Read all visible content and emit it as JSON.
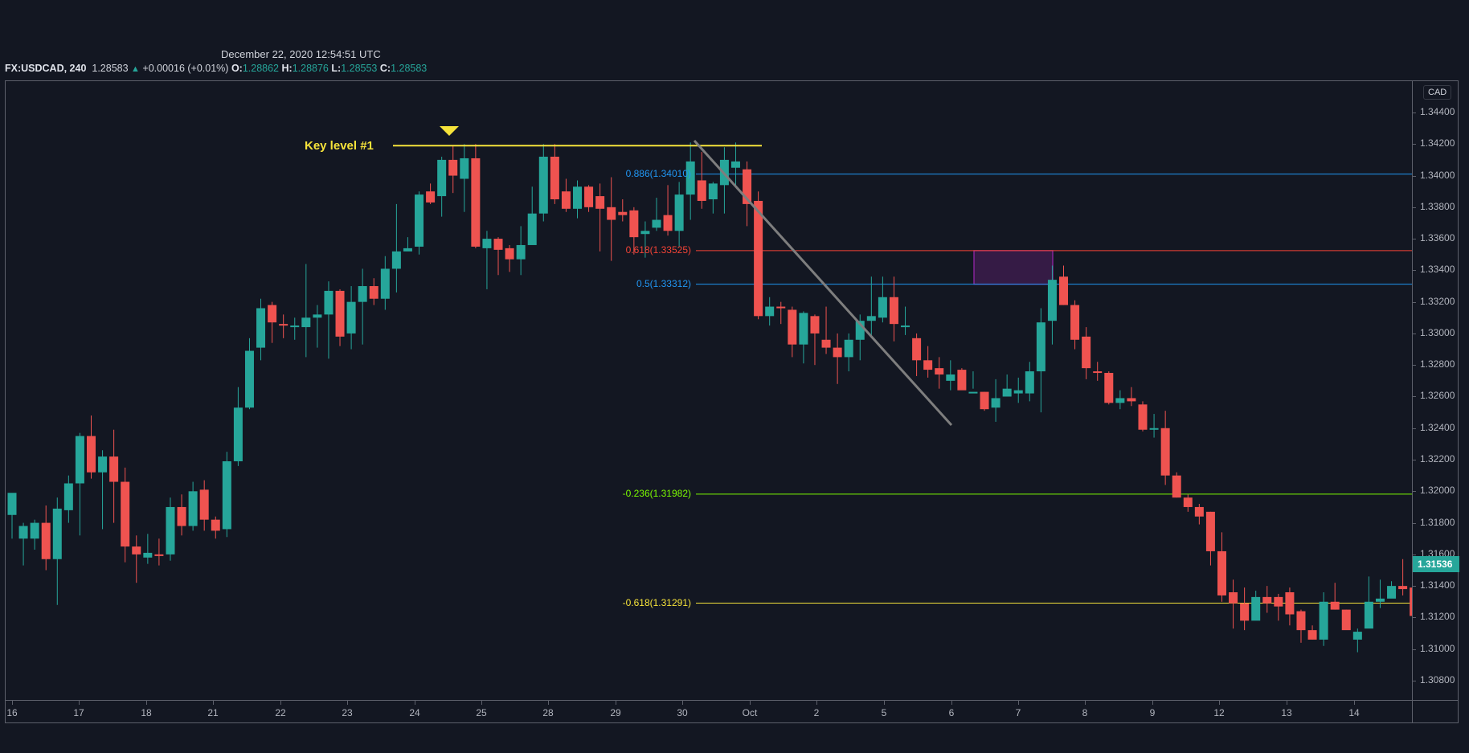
{
  "header": {
    "timestamp": "December 22, 2020 12:54:51 UTC",
    "symbol": "FX:USDCAD, 240",
    "last": "1.28583",
    "change_icon": "triangle-up-icon",
    "change": "+0.00016 (+0.01%)",
    "open_label": "O:",
    "open": "1.28862",
    "high_label": "H:",
    "high": "1.28876",
    "low_label": "L:",
    "low": "1.28553",
    "close_label": "C:",
    "close": "1.28583"
  },
  "price_scale": {
    "currency": "CAD",
    "ticks": [
      "1.34400",
      "1.34200",
      "1.34000",
      "1.33800",
      "1.33600",
      "1.33400",
      "1.33200",
      "1.33000",
      "1.32800",
      "1.32600",
      "1.32400",
      "1.32200",
      "1.32000",
      "1.31800",
      "1.31600",
      "1.31400",
      "1.31200",
      "1.31000",
      "1.30800"
    ],
    "last_price_label": "1.31536"
  },
  "time_axis": {
    "labels": [
      "16",
      "17",
      "18",
      "21",
      "22",
      "23",
      "24",
      "25",
      "28",
      "29",
      "30",
      "Oct",
      "2",
      "5",
      "6",
      "7",
      "8",
      "9",
      "12",
      "13",
      "14"
    ]
  },
  "annotations": {
    "key_level_label": "Key level #1",
    "key_level_price": 1.3419,
    "fib_levels": [
      {
        "label": "0.886(1.34010)",
        "price": 1.3401,
        "color": "#2196f3"
      },
      {
        "label": "0.618(1.33525)",
        "price": 1.33525,
        "color": "#f44336"
      },
      {
        "label": "0.5(1.33312)",
        "price": 1.33312,
        "color": "#2196f3"
      },
      {
        "label": "-0.236(1.31982)",
        "price": 1.31982,
        "color": "#7cfc00"
      },
      {
        "label": "-0.618(1.31291)",
        "price": 1.31291,
        "color": "#f6e33a"
      }
    ],
    "zone_color": "#9c27b0",
    "marker_icon": "arrow-down-icon"
  },
  "colors": {
    "background": "#131722",
    "up": "#26a69a",
    "down": "#ef5350",
    "key_level": "#f6e33a",
    "trendline": "#7e7e7e"
  },
  "chart_data": {
    "type": "candlestick",
    "title": "FX:USDCAD, 240",
    "xlabel": "",
    "ylabel": "CAD",
    "ylim": [
      1.3072,
      1.3452
    ],
    "x_labels": [
      "16",
      "17",
      "18",
      "21",
      "22",
      "23",
      "24",
      "25",
      "28",
      "29",
      "30",
      "Oct",
      "2",
      "5",
      "6",
      "7",
      "8",
      "9",
      "12",
      "13",
      "14"
    ],
    "candles": [
      [
        1.3185,
        1.3199,
        1.3193,
        1.317
      ],
      [
        1.317,
        1.3178,
        1.318,
        1.3153
      ],
      [
        1.317,
        1.318,
        1.3182,
        1.3163
      ],
      [
        1.318,
        1.3157,
        1.3191,
        1.315
      ],
      [
        1.3157,
        1.3189,
        1.3196,
        1.3128
      ],
      [
        1.3188,
        1.3205,
        1.321,
        1.318
      ],
      [
        1.3205,
        1.3235,
        1.3237,
        1.3172
      ],
      [
        1.3235,
        1.3212,
        1.3248,
        1.3208
      ],
      [
        1.3212,
        1.3222,
        1.3226,
        1.3176
      ],
      [
        1.3222,
        1.3206,
        1.3239,
        1.318
      ],
      [
        1.3206,
        1.3165,
        1.3215,
        1.3155
      ],
      [
        1.3165,
        1.316,
        1.3172,
        1.3142
      ],
      [
        1.3158,
        1.3161,
        1.3173,
        1.3154
      ],
      [
        1.316,
        1.3159,
        1.317,
        1.3153
      ],
      [
        1.316,
        1.319,
        1.3196,
        1.3156
      ],
      [
        1.319,
        1.3178,
        1.3198,
        1.3172
      ],
      [
        1.3178,
        1.32,
        1.3206,
        1.3175
      ],
      [
        1.3201,
        1.3182,
        1.3207,
        1.3175
      ],
      [
        1.3182,
        1.3175,
        1.3184,
        1.317
      ],
      [
        1.3176,
        1.3219,
        1.3225,
        1.3171
      ],
      [
        1.3219,
        1.3253,
        1.3266,
        1.3216
      ],
      [
        1.3253,
        1.3289,
        1.3297,
        1.3252
      ],
      [
        1.3291,
        1.3316,
        1.3322,
        1.3283
      ],
      [
        1.3318,
        1.3307,
        1.332,
        1.3294
      ],
      [
        1.3306,
        1.3305,
        1.3312,
        1.3297
      ],
      [
        1.3305,
        1.3305,
        1.331,
        1.3296
      ],
      [
        1.3304,
        1.331,
        1.3344,
        1.3285
      ],
      [
        1.331,
        1.3312,
        1.3318,
        1.3291
      ],
      [
        1.3312,
        1.3327,
        1.3333,
        1.3284
      ],
      [
        1.3327,
        1.3298,
        1.3328,
        1.3292
      ],
      [
        1.33,
        1.332,
        1.333,
        1.329
      ],
      [
        1.332,
        1.333,
        1.3341,
        1.3293
      ],
      [
        1.333,
        1.3322,
        1.3335,
        1.3318
      ],
      [
        1.3322,
        1.3341,
        1.3349,
        1.3315
      ],
      [
        1.3341,
        1.3352,
        1.3382,
        1.3326
      ],
      [
        1.3352,
        1.3354,
        1.3361,
        1.3353
      ],
      [
        1.3355,
        1.3388,
        1.339,
        1.335
      ],
      [
        1.339,
        1.3383,
        1.3395,
        1.3382
      ],
      [
        1.3387,
        1.341,
        1.3412,
        1.3374
      ],
      [
        1.341,
        1.34,
        1.3419,
        1.3389
      ],
      [
        1.3398,
        1.3411,
        1.342,
        1.3377
      ],
      [
        1.3411,
        1.3355,
        1.342,
        1.3354
      ],
      [
        1.3354,
        1.336,
        1.3365,
        1.3328
      ],
      [
        1.336,
        1.3353,
        1.3361,
        1.3337
      ],
      [
        1.3354,
        1.3347,
        1.3356,
        1.3339
      ],
      [
        1.3347,
        1.3356,
        1.3368,
        1.3337
      ],
      [
        1.3356,
        1.3376,
        1.3393,
        1.3374
      ],
      [
        1.3376,
        1.3412,
        1.342,
        1.3371
      ],
      [
        1.3412,
        1.3385,
        1.342,
        1.3382
      ],
      [
        1.339,
        1.3379,
        1.3398,
        1.3377
      ],
      [
        1.3379,
        1.3393,
        1.3397,
        1.3373
      ],
      [
        1.3393,
        1.338,
        1.3394,
        1.3377
      ],
      [
        1.3387,
        1.3379,
        1.3395,
        1.3352
      ],
      [
        1.338,
        1.3372,
        1.3399,
        1.3346
      ],
      [
        1.3377,
        1.3375,
        1.3385,
        1.3371
      ],
      [
        1.3378,
        1.3361,
        1.338,
        1.335
      ],
      [
        1.3363,
        1.3365,
        1.3371,
        1.3348
      ],
      [
        1.3367,
        1.3372,
        1.3386,
        1.3365
      ],
      [
        1.3375,
        1.3365,
        1.3394,
        1.3362
      ],
      [
        1.3365,
        1.3388,
        1.3396,
        1.3355
      ],
      [
        1.3388,
        1.3409,
        1.3421,
        1.3372
      ],
      [
        1.3397,
        1.3384,
        1.3415,
        1.3379
      ],
      [
        1.3385,
        1.3395,
        1.3396,
        1.3376
      ],
      [
        1.3394,
        1.341,
        1.3418,
        1.3376
      ],
      [
        1.3405,
        1.3409,
        1.3421,
        1.3393
      ],
      [
        1.3404,
        1.3382,
        1.3409,
        1.3368
      ],
      [
        1.3384,
        1.3311,
        1.339,
        1.3309
      ],
      [
        1.3311,
        1.3317,
        1.3323,
        1.3305
      ],
      [
        1.3317,
        1.3316,
        1.332,
        1.3306
      ],
      [
        1.3315,
        1.3293,
        1.3317,
        1.3285
      ],
      [
        1.3293,
        1.3313,
        1.3314,
        1.3281
      ],
      [
        1.3311,
        1.33,
        1.3312,
        1.328
      ],
      [
        1.3296,
        1.3291,
        1.3317,
        1.3287
      ],
      [
        1.3291,
        1.3285,
        1.33,
        1.3268
      ],
      [
        1.3285,
        1.3296,
        1.33,
        1.3276
      ],
      [
        1.3296,
        1.3308,
        1.3312,
        1.3283
      ],
      [
        1.3308,
        1.3311,
        1.3336,
        1.3298
      ],
      [
        1.331,
        1.3323,
        1.3336,
        1.3307
      ],
      [
        1.3323,
        1.3306,
        1.3336,
        1.3295
      ],
      [
        1.3304,
        1.3305,
        1.3317,
        1.3299
      ],
      [
        1.3297,
        1.3283,
        1.33,
        1.3273
      ],
      [
        1.3283,
        1.3277,
        1.3292,
        1.3272
      ],
      [
        1.3278,
        1.3274,
        1.3285,
        1.3265
      ],
      [
        1.327,
        1.3274,
        1.3283,
        1.3264
      ],
      [
        1.3277,
        1.3264,
        1.3278,
        1.3265
      ],
      [
        1.3262,
        1.3263,
        1.3276,
        1.3265
      ],
      [
        1.3263,
        1.3252,
        1.3263,
        1.3251
      ],
      [
        1.3253,
        1.3259,
        1.3271,
        1.3244
      ],
      [
        1.326,
        1.3265,
        1.3274,
        1.3262
      ],
      [
        1.3262,
        1.3264,
        1.3272,
        1.3256
      ],
      [
        1.3262,
        1.3276,
        1.3282,
        1.3257
      ],
      [
        1.3276,
        1.3307,
        1.3316,
        1.325
      ],
      [
        1.3308,
        1.3334,
        1.3343,
        1.3293
      ],
      [
        1.3336,
        1.3318,
        1.3343,
        1.3318
      ],
      [
        1.3318,
        1.3296,
        1.3321,
        1.329
      ],
      [
        1.3298,
        1.3278,
        1.3304,
        1.3271
      ],
      [
        1.3276,
        1.3275,
        1.3282,
        1.327
      ],
      [
        1.3275,
        1.3256,
        1.3276,
        1.3255
      ],
      [
        1.3256,
        1.3259,
        1.3264,
        1.3252
      ],
      [
        1.3259,
        1.3257,
        1.3266,
        1.3254
      ],
      [
        1.3255,
        1.3239,
        1.3257,
        1.3238
      ],
      [
        1.324,
        1.324,
        1.3249,
        1.3234
      ],
      [
        1.324,
        1.321,
        1.3251,
        1.3204
      ],
      [
        1.321,
        1.3196,
        1.3212,
        1.3196
      ],
      [
        1.3196,
        1.319,
        1.3198,
        1.3187
      ],
      [
        1.319,
        1.3184,
        1.3192,
        1.3179
      ],
      [
        1.3187,
        1.3162,
        1.3187,
        1.3153
      ],
      [
        1.3162,
        1.3134,
        1.3174,
        1.313
      ],
      [
        1.3136,
        1.3129,
        1.3144,
        1.3113
      ],
      [
        1.3129,
        1.3118,
        1.3139,
        1.3112
      ],
      [
        1.3118,
        1.3133,
        1.3137,
        1.3119
      ],
      [
        1.3133,
        1.3129,
        1.314,
        1.3123
      ],
      [
        1.3133,
        1.3127,
        1.3135,
        1.3118
      ],
      [
        1.3136,
        1.3122,
        1.3139,
        1.3115
      ],
      [
        1.3124,
        1.3112,
        1.3125,
        1.3104
      ],
      [
        1.3112,
        1.3106,
        1.3115,
        1.3106
      ],
      [
        1.3106,
        1.313,
        1.3136,
        1.3102
      ],
      [
        1.313,
        1.3125,
        1.3142,
        1.3125
      ],
      [
        1.3125,
        1.3112,
        1.3125,
        1.3113
      ],
      [
        1.3106,
        1.3111,
        1.3113,
        1.3098
      ],
      [
        1.3113,
        1.313,
        1.3146,
        1.3125
      ],
      [
        1.313,
        1.3132,
        1.3144,
        1.3126
      ],
      [
        1.3132,
        1.314,
        1.3143,
        1.3134
      ],
      [
        1.314,
        1.3138,
        1.3157,
        1.3134
      ],
      [
        1.3139,
        1.3121,
        1.3142,
        1.3119
      ],
      [
        1.3121,
        1.3131,
        1.315,
        1.3116
      ],
      [
        1.3131,
        1.3147,
        1.3168,
        1.3127
      ],
      [
        1.3147,
        1.315,
        1.3156,
        1.3142
      ],
      [
        1.3148,
        1.3154,
        1.3164,
        1.3146
      ]
    ]
  }
}
